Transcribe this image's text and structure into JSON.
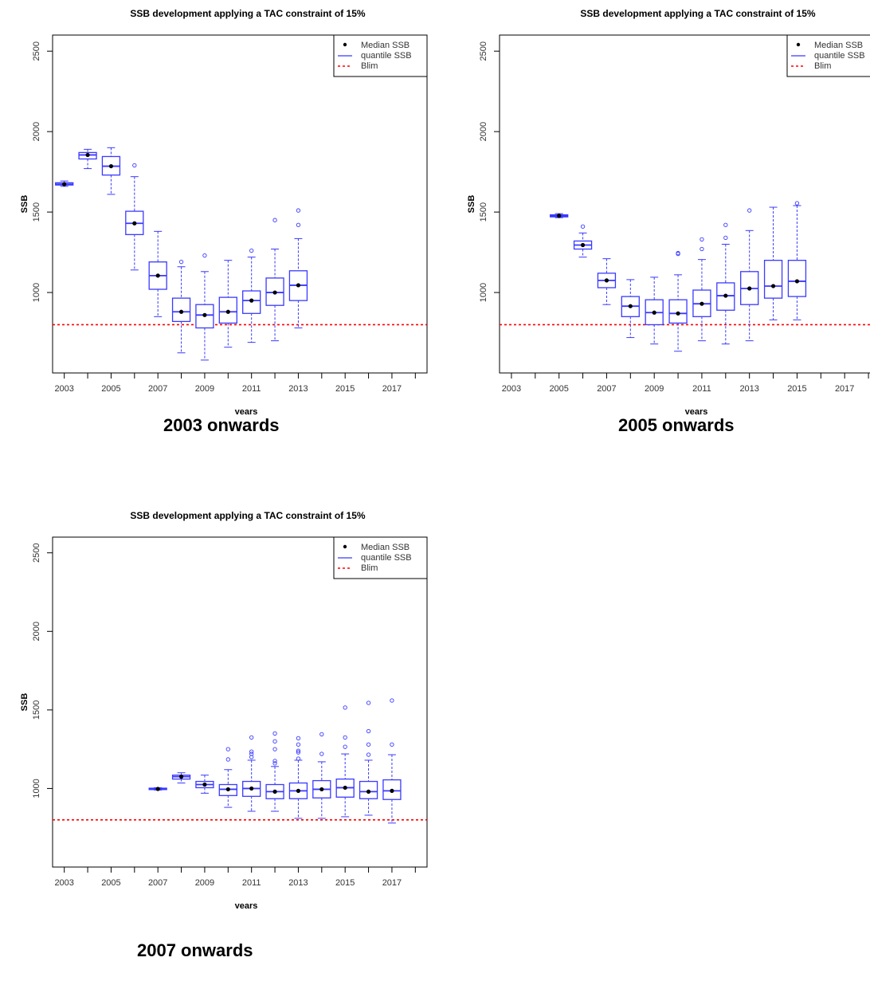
{
  "charts": [
    {
      "title": "SSB development applying a TAC constraint of 15%",
      "xlabel": "years",
      "ylabel": "SSB",
      "caption": "2003 onwards",
      "legend": [
        "Median SSB",
        "quantile SSB",
        "Blim"
      ]
    },
    {
      "title": "SSB development applying a TAC constraint of 15%",
      "xlabel": "years",
      "ylabel": "SSB",
      "caption": "2005 onwards",
      "legend": [
        "Median SSB",
        "quantile SSB",
        "Blim"
      ]
    },
    {
      "title": "SSB development applying a TAC constraint of 15%",
      "xlabel": "years",
      "ylabel": "SSB",
      "caption": "2007 onwards",
      "legend": [
        "Median SSB",
        "quantile SSB",
        "Blim"
      ]
    }
  ],
  "chart_data": [
    {
      "type": "boxplot",
      "title": "SSB development applying a TAC constraint of 15%",
      "xlabel": "years",
      "ylabel": "SSB",
      "xlim": [
        2002.5,
        2018.5
      ],
      "ylim": [
        500,
        2600
      ],
      "xticks": [
        2003,
        2005,
        2007,
        2009,
        2011,
        2013,
        2015,
        2017
      ],
      "yticks": [
        1000,
        1500,
        2000,
        2500
      ],
      "blim": 800,
      "legend_position": "top-right",
      "colors": {
        "box": "#3a3aff",
        "median": "#000000",
        "blim": "#ff0000"
      },
      "boxes": [
        {
          "year": 2003,
          "min": 1660,
          "q1": 1668,
          "median": 1673,
          "q3": 1682,
          "max": 1693,
          "outliers": []
        },
        {
          "year": 2004,
          "min": 1770,
          "q1": 1830,
          "median": 1855,
          "q3": 1870,
          "max": 1890,
          "outliers": []
        },
        {
          "year": 2005,
          "min": 1610,
          "q1": 1730,
          "median": 1785,
          "q3": 1845,
          "max": 1900,
          "outliers": []
        },
        {
          "year": 2006,
          "min": 1140,
          "q1": 1360,
          "median": 1430,
          "q3": 1505,
          "max": 1720,
          "outliers": [
            1790
          ]
        },
        {
          "year": 2007,
          "min": 850,
          "q1": 1020,
          "median": 1105,
          "q3": 1190,
          "max": 1380,
          "outliers": []
        },
        {
          "year": 2008,
          "min": 625,
          "q1": 820,
          "median": 880,
          "q3": 965,
          "max": 1160,
          "outliers": [
            1190
          ]
        },
        {
          "year": 2009,
          "min": 580,
          "q1": 780,
          "median": 860,
          "q3": 925,
          "max": 1130,
          "outliers": [
            1230
          ]
        },
        {
          "year": 2010,
          "min": 660,
          "q1": 810,
          "median": 880,
          "q3": 970,
          "max": 1200,
          "outliers": []
        },
        {
          "year": 2011,
          "min": 690,
          "q1": 870,
          "median": 950,
          "q3": 1010,
          "max": 1220,
          "outliers": [
            1260
          ]
        },
        {
          "year": 2012,
          "min": 700,
          "q1": 920,
          "median": 1000,
          "q3": 1090,
          "max": 1270,
          "outliers": [
            1450
          ]
        },
        {
          "year": 2013,
          "min": 780,
          "q1": 950,
          "median": 1045,
          "q3": 1135,
          "max": 1335,
          "outliers": [
            1420,
            1510
          ]
        }
      ]
    },
    {
      "type": "boxplot",
      "title": "SSB development applying a TAC constraint of 15%",
      "xlabel": "years",
      "ylabel": "SSB",
      "xlim": [
        2002.5,
        2018.5
      ],
      "ylim": [
        500,
        2600
      ],
      "xticks": [
        2003,
        2005,
        2007,
        2009,
        2011,
        2013,
        2015,
        2017
      ],
      "yticks": [
        1000,
        1500,
        2000,
        2500
      ],
      "blim": 800,
      "legend_position": "top-right",
      "colors": {
        "box": "#3a3aff",
        "median": "#000000",
        "blim": "#ff0000"
      },
      "boxes": [
        {
          "year": 2005,
          "min": 1465,
          "q1": 1470,
          "median": 1477,
          "q3": 1483,
          "max": 1490,
          "outliers": []
        },
        {
          "year": 2006,
          "min": 1220,
          "q1": 1270,
          "median": 1295,
          "q3": 1320,
          "max": 1370,
          "outliers": [
            1410
          ]
        },
        {
          "year": 2007,
          "min": 925,
          "q1": 1030,
          "median": 1075,
          "q3": 1120,
          "max": 1210,
          "outliers": []
        },
        {
          "year": 2008,
          "min": 720,
          "q1": 850,
          "median": 915,
          "q3": 975,
          "max": 1080,
          "outliers": []
        },
        {
          "year": 2009,
          "min": 680,
          "q1": 800,
          "median": 875,
          "q3": 955,
          "max": 1095,
          "outliers": []
        },
        {
          "year": 2010,
          "min": 635,
          "q1": 810,
          "median": 870,
          "q3": 955,
          "max": 1110,
          "outliers": [
            1240,
            1245
          ]
        },
        {
          "year": 2011,
          "min": 700,
          "q1": 850,
          "median": 930,
          "q3": 1015,
          "max": 1205,
          "outliers": [
            1270,
            1330
          ]
        },
        {
          "year": 2012,
          "min": 680,
          "q1": 890,
          "median": 980,
          "q3": 1060,
          "max": 1300,
          "outliers": [
            1340,
            1420
          ]
        },
        {
          "year": 2013,
          "min": 700,
          "q1": 925,
          "median": 1025,
          "q3": 1130,
          "max": 1385,
          "outliers": [
            1510
          ]
        },
        {
          "year": 2014,
          "min": 830,
          "q1": 965,
          "median": 1040,
          "q3": 1200,
          "max": 1530,
          "outliers": []
        },
        {
          "year": 2015,
          "min": 830,
          "q1": 975,
          "median": 1070,
          "q3": 1200,
          "max": 1540,
          "outliers": [
            1555
          ]
        }
      ]
    },
    {
      "type": "boxplot",
      "title": "SSB development applying a TAC constraint of 15%",
      "xlabel": "years",
      "ylabel": "SSB",
      "xlim": [
        2002.5,
        2018.5
      ],
      "ylim": [
        500,
        2600
      ],
      "xticks": [
        2003,
        2005,
        2007,
        2009,
        2011,
        2013,
        2015,
        2017
      ],
      "yticks": [
        1000,
        1500,
        2000,
        2500
      ],
      "blim": 800,
      "legend_position": "top-right",
      "colors": {
        "box": "#3a3aff",
        "median": "#000000",
        "blim": "#ff0000"
      },
      "boxes": [
        {
          "year": 2007,
          "min": 990,
          "q1": 993,
          "median": 997,
          "q3": 1002,
          "max": 1005,
          "outliers": []
        },
        {
          "year": 2008,
          "min": 1035,
          "q1": 1060,
          "median": 1075,
          "q3": 1085,
          "max": 1100,
          "outliers": []
        },
        {
          "year": 2009,
          "min": 970,
          "q1": 1005,
          "median": 1025,
          "q3": 1045,
          "max": 1085,
          "outliers": []
        },
        {
          "year": 2010,
          "min": 880,
          "q1": 955,
          "median": 995,
          "q3": 1025,
          "max": 1120,
          "outliers": [
            1185,
            1250
          ]
        },
        {
          "year": 2011,
          "min": 855,
          "q1": 950,
          "median": 1000,
          "q3": 1045,
          "max": 1180,
          "outliers": [
            1200,
            1220,
            1235,
            1325
          ]
        },
        {
          "year": 2012,
          "min": 855,
          "q1": 935,
          "median": 980,
          "q3": 1025,
          "max": 1140,
          "outliers": [
            1160,
            1175,
            1250,
            1300,
            1350
          ]
        },
        {
          "year": 2013,
          "min": 810,
          "q1": 935,
          "median": 985,
          "q3": 1035,
          "max": 1180,
          "outliers": [
            1190,
            1230,
            1240,
            1280,
            1320
          ]
        },
        {
          "year": 2014,
          "min": 810,
          "q1": 940,
          "median": 995,
          "q3": 1050,
          "max": 1170,
          "outliers": [
            1220,
            1345
          ]
        },
        {
          "year": 2015,
          "min": 820,
          "q1": 945,
          "median": 1005,
          "q3": 1060,
          "max": 1220,
          "outliers": [
            1265,
            1325,
            1515
          ]
        },
        {
          "year": 2016,
          "min": 830,
          "q1": 935,
          "median": 980,
          "q3": 1045,
          "max": 1180,
          "outliers": [
            1215,
            1280,
            1365,
            1545
          ]
        },
        {
          "year": 2017,
          "min": 780,
          "q1": 930,
          "median": 985,
          "q3": 1055,
          "max": 1215,
          "outliers": [
            1280,
            1560
          ]
        }
      ]
    }
  ]
}
